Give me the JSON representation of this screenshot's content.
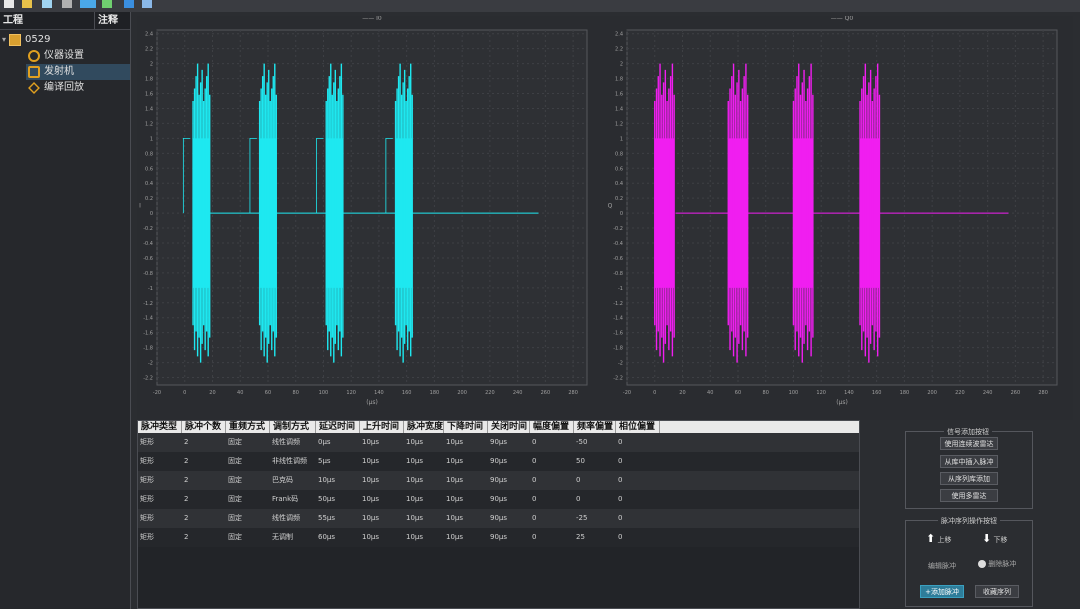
{
  "sidebar": {
    "col_project": "工程",
    "col_note": "注释",
    "items": [
      {
        "label": "0529"
      },
      {
        "label": "仪器设置"
      },
      {
        "label": "发射机"
      },
      {
        "label": "编译回放"
      }
    ]
  },
  "charts": [
    {
      "legend": "I0",
      "color": "#1ee8f0",
      "xlabel": "(μs)",
      "ylabel": "I",
      "x_ticks": [
        "-20",
        "0",
        "20",
        "40",
        "60",
        "80",
        "100",
        "120",
        "140",
        "160",
        "180",
        "200",
        "220",
        "240",
        "260",
        "280"
      ],
      "y_ticks": [
        "2.4",
        "2.2",
        "2",
        "1.8",
        "1.6",
        "1.4",
        "1.2",
        "1",
        "0.8",
        "0.6",
        "0.4",
        "0.2",
        "0",
        "-0.2",
        "-0.4",
        "-0.6",
        "-0.8",
        "-1",
        "-1.2",
        "-1.4",
        "-1.6",
        "-1.8",
        "-2",
        "-2.2"
      ]
    },
    {
      "legend": "Q0",
      "color": "#f01ef0",
      "xlabel": "(μs)",
      "ylabel": "Q",
      "x_ticks": [
        "-20",
        "0",
        "20",
        "40",
        "60",
        "80",
        "100",
        "120",
        "140",
        "160",
        "180",
        "200",
        "220",
        "240",
        "260",
        "280"
      ],
      "y_ticks": [
        "2.4",
        "2.2",
        "2",
        "1.8",
        "1.6",
        "1.4",
        "1.2",
        "1",
        "0.8",
        "0.6",
        "0.4",
        "0.2",
        "0",
        "-0.2",
        "-0.4",
        "-0.6",
        "-0.8",
        "-1",
        "-1.2",
        "-1.4",
        "-1.6",
        "-1.8",
        "-2",
        "-2.2"
      ]
    }
  ],
  "table": {
    "headers": [
      "脉冲类型",
      "脉冲个数",
      "重频方式",
      "调制方式",
      "延迟时间",
      "上升时间",
      "脉冲宽度",
      "下降时间",
      "关闭时间",
      "幅度偏置",
      "频率偏置",
      "相位偏置"
    ],
    "rows": [
      [
        "矩形",
        "2",
        "固定",
        "线性调频",
        "0μs",
        "10μs",
        "10μs",
        "10μs",
        "90μs",
        "0",
        "-50",
        "0"
      ],
      [
        "矩形",
        "2",
        "固定",
        "非线性调频",
        "5μs",
        "10μs",
        "10μs",
        "10μs",
        "90μs",
        "0",
        "50",
        "0"
      ],
      [
        "矩形",
        "2",
        "固定",
        "巴克码",
        "10μs",
        "10μs",
        "10μs",
        "10μs",
        "90μs",
        "0",
        "0",
        "0"
      ],
      [
        "矩形",
        "2",
        "固定",
        "Frank码",
        "50μs",
        "10μs",
        "10μs",
        "10μs",
        "90μs",
        "0",
        "0",
        "0"
      ],
      [
        "矩形",
        "2",
        "固定",
        "线性调频",
        "55μs",
        "10μs",
        "10μs",
        "10μs",
        "90μs",
        "0",
        "-25",
        "0"
      ],
      [
        "矩形",
        "2",
        "固定",
        "无调制",
        "60μs",
        "10μs",
        "10μs",
        "10μs",
        "90μs",
        "0",
        "25",
        "0"
      ]
    ]
  },
  "signal_group": {
    "title": "信号添加按钮",
    "buttons": [
      "使用连续波雷达",
      "从库中插入脉冲",
      "从序列库添加",
      "使用多雷达"
    ]
  },
  "sequence_group": {
    "title": "脉冲序列操作按钮",
    "up": "上移",
    "down": "下移",
    "edit": "编辑脉冲",
    "delete": "删除脉冲",
    "add": "添加脉冲",
    "save": "收藏序列"
  }
}
